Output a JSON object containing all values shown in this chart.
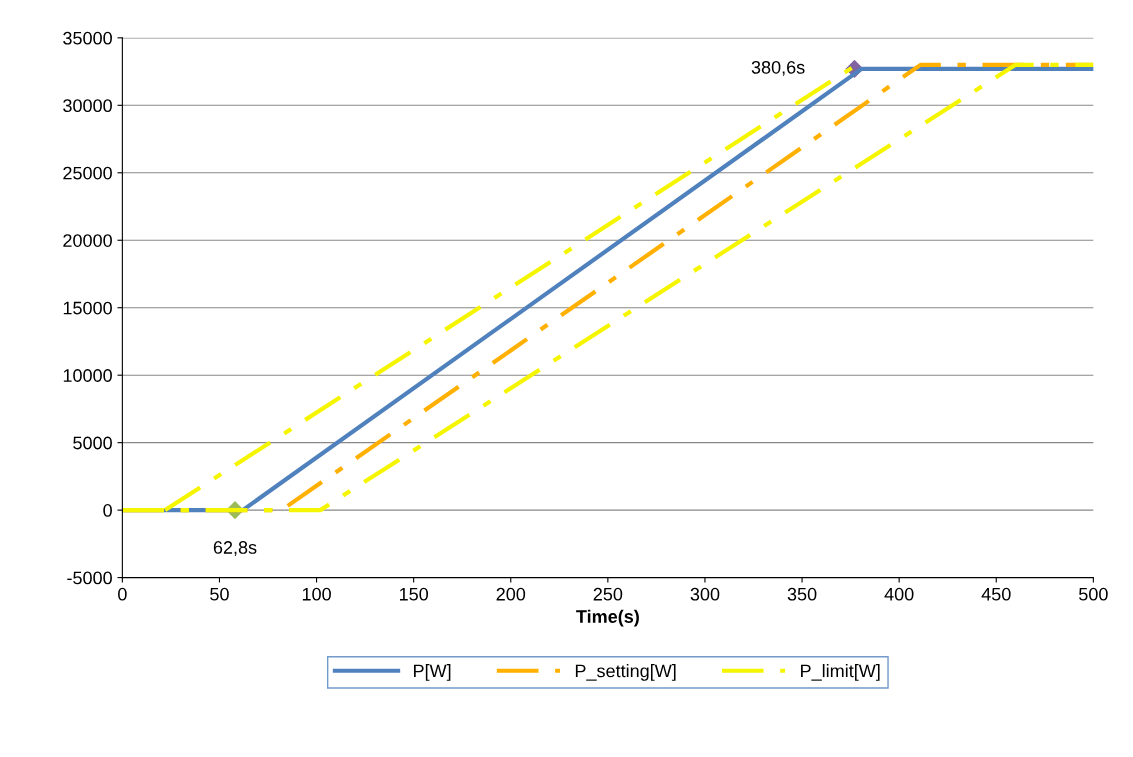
{
  "chart_data": {
    "type": "line",
    "xlabel": "Time(s)",
    "xlim": [
      0,
      500
    ],
    "xticks": [
      0,
      50,
      100,
      150,
      200,
      250,
      300,
      350,
      400,
      450,
      500
    ],
    "ylim": [
      -5000,
      35000
    ],
    "yticks": [
      -5000,
      0,
      5000,
      10000,
      15000,
      20000,
      25000,
      30000,
      35000
    ],
    "grid": "y",
    "legend": "bottom",
    "series": [
      {
        "name": "P[W]",
        "color": "#4f81bd",
        "line_style": "solid",
        "marker": "none",
        "x": [
          0,
          62,
          380.6,
          500
        ],
        "values": [
          0,
          0,
          32700,
          32700
        ]
      },
      {
        "name": "P_setting[W]",
        "color": "#ffb000",
        "line_style": "dashed",
        "marker": "none",
        "x": [
          0,
          82,
          411,
          500
        ],
        "values": [
          0,
          0,
          33000,
          33000
        ]
      },
      {
        "name": "P_limit[W]",
        "color": "#f5f500",
        "line_style": "dashed",
        "marker": "none",
        "x": [
          0,
          102,
          460,
          500
        ],
        "values": [
          0,
          0,
          33000,
          33000
        ]
      },
      {
        "color": "#f5f500",
        "line_style": "dashed",
        "marker": "none",
        "x": [
          22,
          378
        ],
        "values": [
          0,
          33000
        ]
      },
      {
        "type": "scatter",
        "color": "#9bbb59",
        "marker": "diamond",
        "x": [
          58
        ],
        "values": [
          0
        ]
      },
      {
        "type": "scatter",
        "color": "#8064a2",
        "marker": "diamond",
        "x": [
          377
        ],
        "values": [
          32700
        ]
      }
    ],
    "annotations": [
      {
        "text": "62,8s",
        "x": 58,
        "y": 0
      },
      {
        "text": "380,6s",
        "x": 377,
        "y": 32700
      }
    ]
  }
}
